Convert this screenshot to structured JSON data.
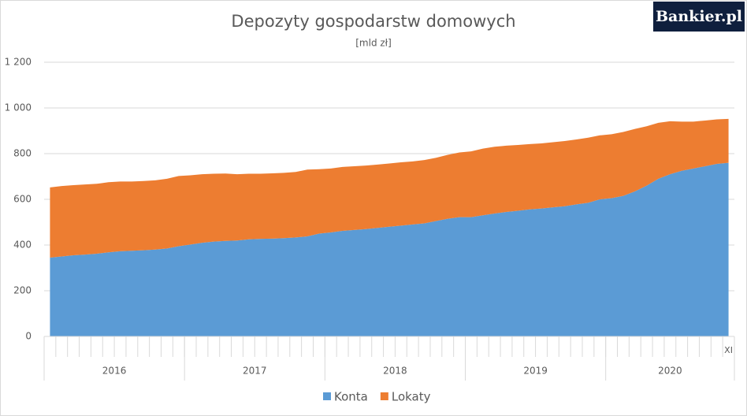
{
  "chart_data": {
    "type": "stacked_area",
    "title": "Depozyty gospodarstw domowych",
    "subtitle": "[mld zł]",
    "logo": "Bankier.pl",
    "categories": [
      null,
      null,
      null,
      null,
      null,
      null,
      null,
      null,
      null,
      null,
      null,
      null,
      null,
      null,
      null,
      null,
      null,
      null,
      null,
      null,
      null,
      null,
      null,
      null,
      null,
      null,
      null,
      null,
      null,
      null,
      null,
      null,
      null,
      null,
      null,
      null,
      null,
      null,
      null,
      null,
      null,
      null,
      null,
      null,
      null,
      null,
      null,
      null,
      null,
      null,
      null,
      null,
      null,
      null,
      null,
      null,
      null,
      null,
      "XI"
    ],
    "x_groups": [
      "2016",
      "2017",
      "2018",
      "2019",
      "2020"
    ],
    "series": [
      {
        "name": "Konta",
        "color": "#5b9bd5",
        "values": [
          345,
          350,
          355,
          358,
          362,
          368,
          373,
          375,
          377,
          380,
          385,
          395,
          402,
          410,
          415,
          418,
          420,
          425,
          427,
          428,
          430,
          433,
          438,
          450,
          455,
          462,
          466,
          470,
          475,
          480,
          485,
          490,
          495,
          505,
          515,
          522,
          522,
          530,
          538,
          545,
          550,
          556,
          560,
          565,
          570,
          578,
          585,
          600,
          605,
          615,
          635,
          660,
          690,
          710,
          725,
          735,
          745,
          755,
          760
        ]
      },
      {
        "name": "Lokaty",
        "color": "#ed7d31",
        "values": [
          307,
          308,
          307,
          307,
          306,
          307,
          305,
          303,
          303,
          303,
          305,
          307,
          303,
          300,
          297,
          295,
          290,
          287,
          285,
          286,
          286,
          287,
          292,
          282,
          280,
          280,
          279,
          278,
          277,
          277,
          277,
          276,
          277,
          277,
          280,
          283,
          288,
          292,
          292,
          290,
          288,
          286,
          285,
          285,
          285,
          284,
          285,
          280,
          280,
          280,
          273,
          260,
          245,
          232,
          215,
          205,
          200,
          195,
          192
        ]
      }
    ],
    "ylim": [
      0,
      1200
    ],
    "yticks": [
      0,
      200,
      400,
      600,
      800,
      {
        "value": 1000,
        "label": "1 000"
      },
      {
        "value": 1200,
        "label": "1 200"
      }
    ],
    "grid": true,
    "legend": "bottom"
  }
}
